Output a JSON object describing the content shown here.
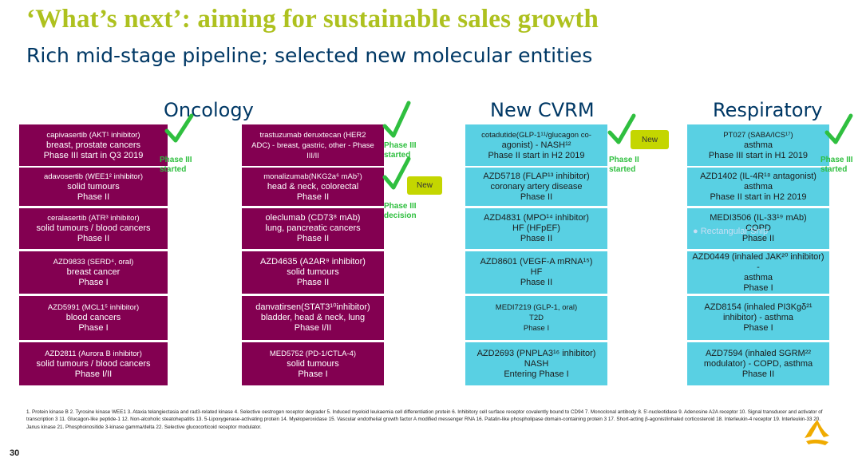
{
  "title": "‘What’s next’: aiming for sustainable sales growth",
  "subtitle": "Rich mid-stage pipeline; selected new molecular entities",
  "columns": {
    "oncology": "Oncology",
    "cvrm": "New CVRM",
    "respiratory": "Respiratory"
  },
  "onc1": [
    {
      "top": "capivasertib (AKT¹ inhibitor)",
      "l2": "breast, prostate cancers",
      "l3": "Phase III start in Q3 2019"
    },
    {
      "top": "adavosertib (WEE1² inhibitor)",
      "l2": "solid tumours",
      "l3": "Phase II"
    },
    {
      "top": "ceralasertib (ATR³ inhibitor)",
      "l2": "solid tumours / blood cancers",
      "l3": "Phase II"
    },
    {
      "top": "AZD9833 (SERD⁴, oral)",
      "l2": "breast cancer",
      "l3": "Phase I"
    },
    {
      "top": "AZD5991 (MCL1⁵ inhibitor)",
      "l2": "blood cancers",
      "l3": "Phase I"
    },
    {
      "top": "AZD2811 (Aurora B inhibitor)",
      "l2": "solid tumours / blood cancers",
      "l3": "Phase I/II"
    }
  ],
  "onc2": [
    {
      "top": "trastuzumab deruxtecan (HER2",
      "l2": "ADC) - breast, gastric, other - Phase",
      "l3": "III/II"
    },
    {
      "top": "monalizumab(NKG2a⁶ mAb⁷)",
      "l2": "head & neck, colorectal",
      "l3": "Phase II"
    },
    {
      "top": "oleclumab (CD73⁸ mAb)",
      "l2": "lung, pancreatic cancers",
      "l3": "Phase II"
    },
    {
      "top": "AZD4635 (A2AR⁹ inhibitor)",
      "l2": "solid tumours",
      "l3": "Phase II"
    },
    {
      "top": "danvatirsen(STAT3¹⁰inhibitor)",
      "l2": "bladder, head & neck, lung",
      "l3": "Phase I/II"
    },
    {
      "top": "MED5752 (PD-1/CTLA-4)",
      "l2": "solid tumours",
      "l3": "Phase I"
    }
  ],
  "cvrm": [
    {
      "top": "cotadutide(GLP-1¹¹/glucagon co-",
      "l2": "agonist) - NASH¹²",
      "l3": "Phase II start in H2 2019"
    },
    {
      "top": "AZD5718 (FLAP¹³ inhibitor)",
      "l2": "coronary artery disease",
      "l3": "Phase II"
    },
    {
      "top": "AZD4831 (MPO¹⁴ inhibitor)",
      "l2": "HF (HFpEF)",
      "l3": "Phase II"
    },
    {
      "top": "AZD8601 (VEGF-A mRNA¹⁵)",
      "l2": "HF",
      "l3": "Phase II"
    },
    {
      "top": "MEDI7219 (GLP-1, oral)",
      "l2": "T2D",
      "l3": "Phase I"
    },
    {
      "top": "AZD2693 (PNPLA3¹⁶ inhibitor)",
      "l2": "NASH",
      "l3": "Entering Phase I"
    }
  ],
  "resp": [
    {
      "top": "PT027 (SABA/ICS¹⁷)",
      "l2": "asthma",
      "l3": "Phase III start in H1 2019"
    },
    {
      "top": "AZD1402 (IL-4R¹⁸ antagonist)",
      "l2": "asthma",
      "l3": "Phase II start in H2 2019"
    },
    {
      "top": "MEDI3506 (IL-33¹⁹ mAb)",
      "l2": "COPD",
      "l3": "Phase II"
    },
    {
      "top": "AZD0449 (inhaled JAK²⁰ inhibitor) -",
      "l2": "asthma",
      "l3": "Phase I"
    },
    {
      "top": "AZD8154 (inhaled PI3Kgδ²¹",
      "l2": "inhibitor) - asthma",
      "l3": "Phase I"
    },
    {
      "top": "AZD7594 (inhaled SGRM²²",
      "l2": "modulator) - COPD, asthma",
      "l3": "Phase II"
    }
  ],
  "annotations": {
    "onc1_status": "Phase III started",
    "onc2_status1": "Phase III started",
    "onc2_status2": "Phase III decision",
    "cvrm_status": "Phase II started",
    "resp_status": "Phase III started",
    "new_label": "New",
    "ghost_text": "Rectangular Snip"
  },
  "footnotes": "1. Protein kinase B  2. Tyrosine kinase WEE1  3. Ataxia telangiectasia and rad3-related kinase  4. Selective oestrogen receptor degrader  5. Induced myeloid leukaemia cell differentiation protein  6. Inhibitory cell surface receptor covalently bound to CD94  7. Monoclonal antibody  8. 5'-nucleotidase  9. Adenosine A2A receptor  10. Signal transducer and activator of transcription 3  11. Glucagon-like peptide-1  12. Non-alcoholic steatohepatitis  13. 5-Lipoxygenase-activating protein  14. Myeloperoxidase  15. Vascular endothelial growth factor A modified messenger RNA  16. Patatin-like phospholipase domain-containing protein 3  17. Short-acting β-agonist/inhaled corticosteroid  18. Interleukin-4 receptor  19. Interleukin-33  20. Janus kinase  21. Phosphoinositide 3-kinase gamma/delta  22. Selective glucocorticoid receptor modulator.",
  "page_number": "30",
  "colors": {
    "title": "#aec11f",
    "subtitle": "#003865",
    "oncology_box": "#830051",
    "other_box": "#59d0e3",
    "status_green": "#2fbf3f",
    "new_badge": "#c4d600"
  }
}
